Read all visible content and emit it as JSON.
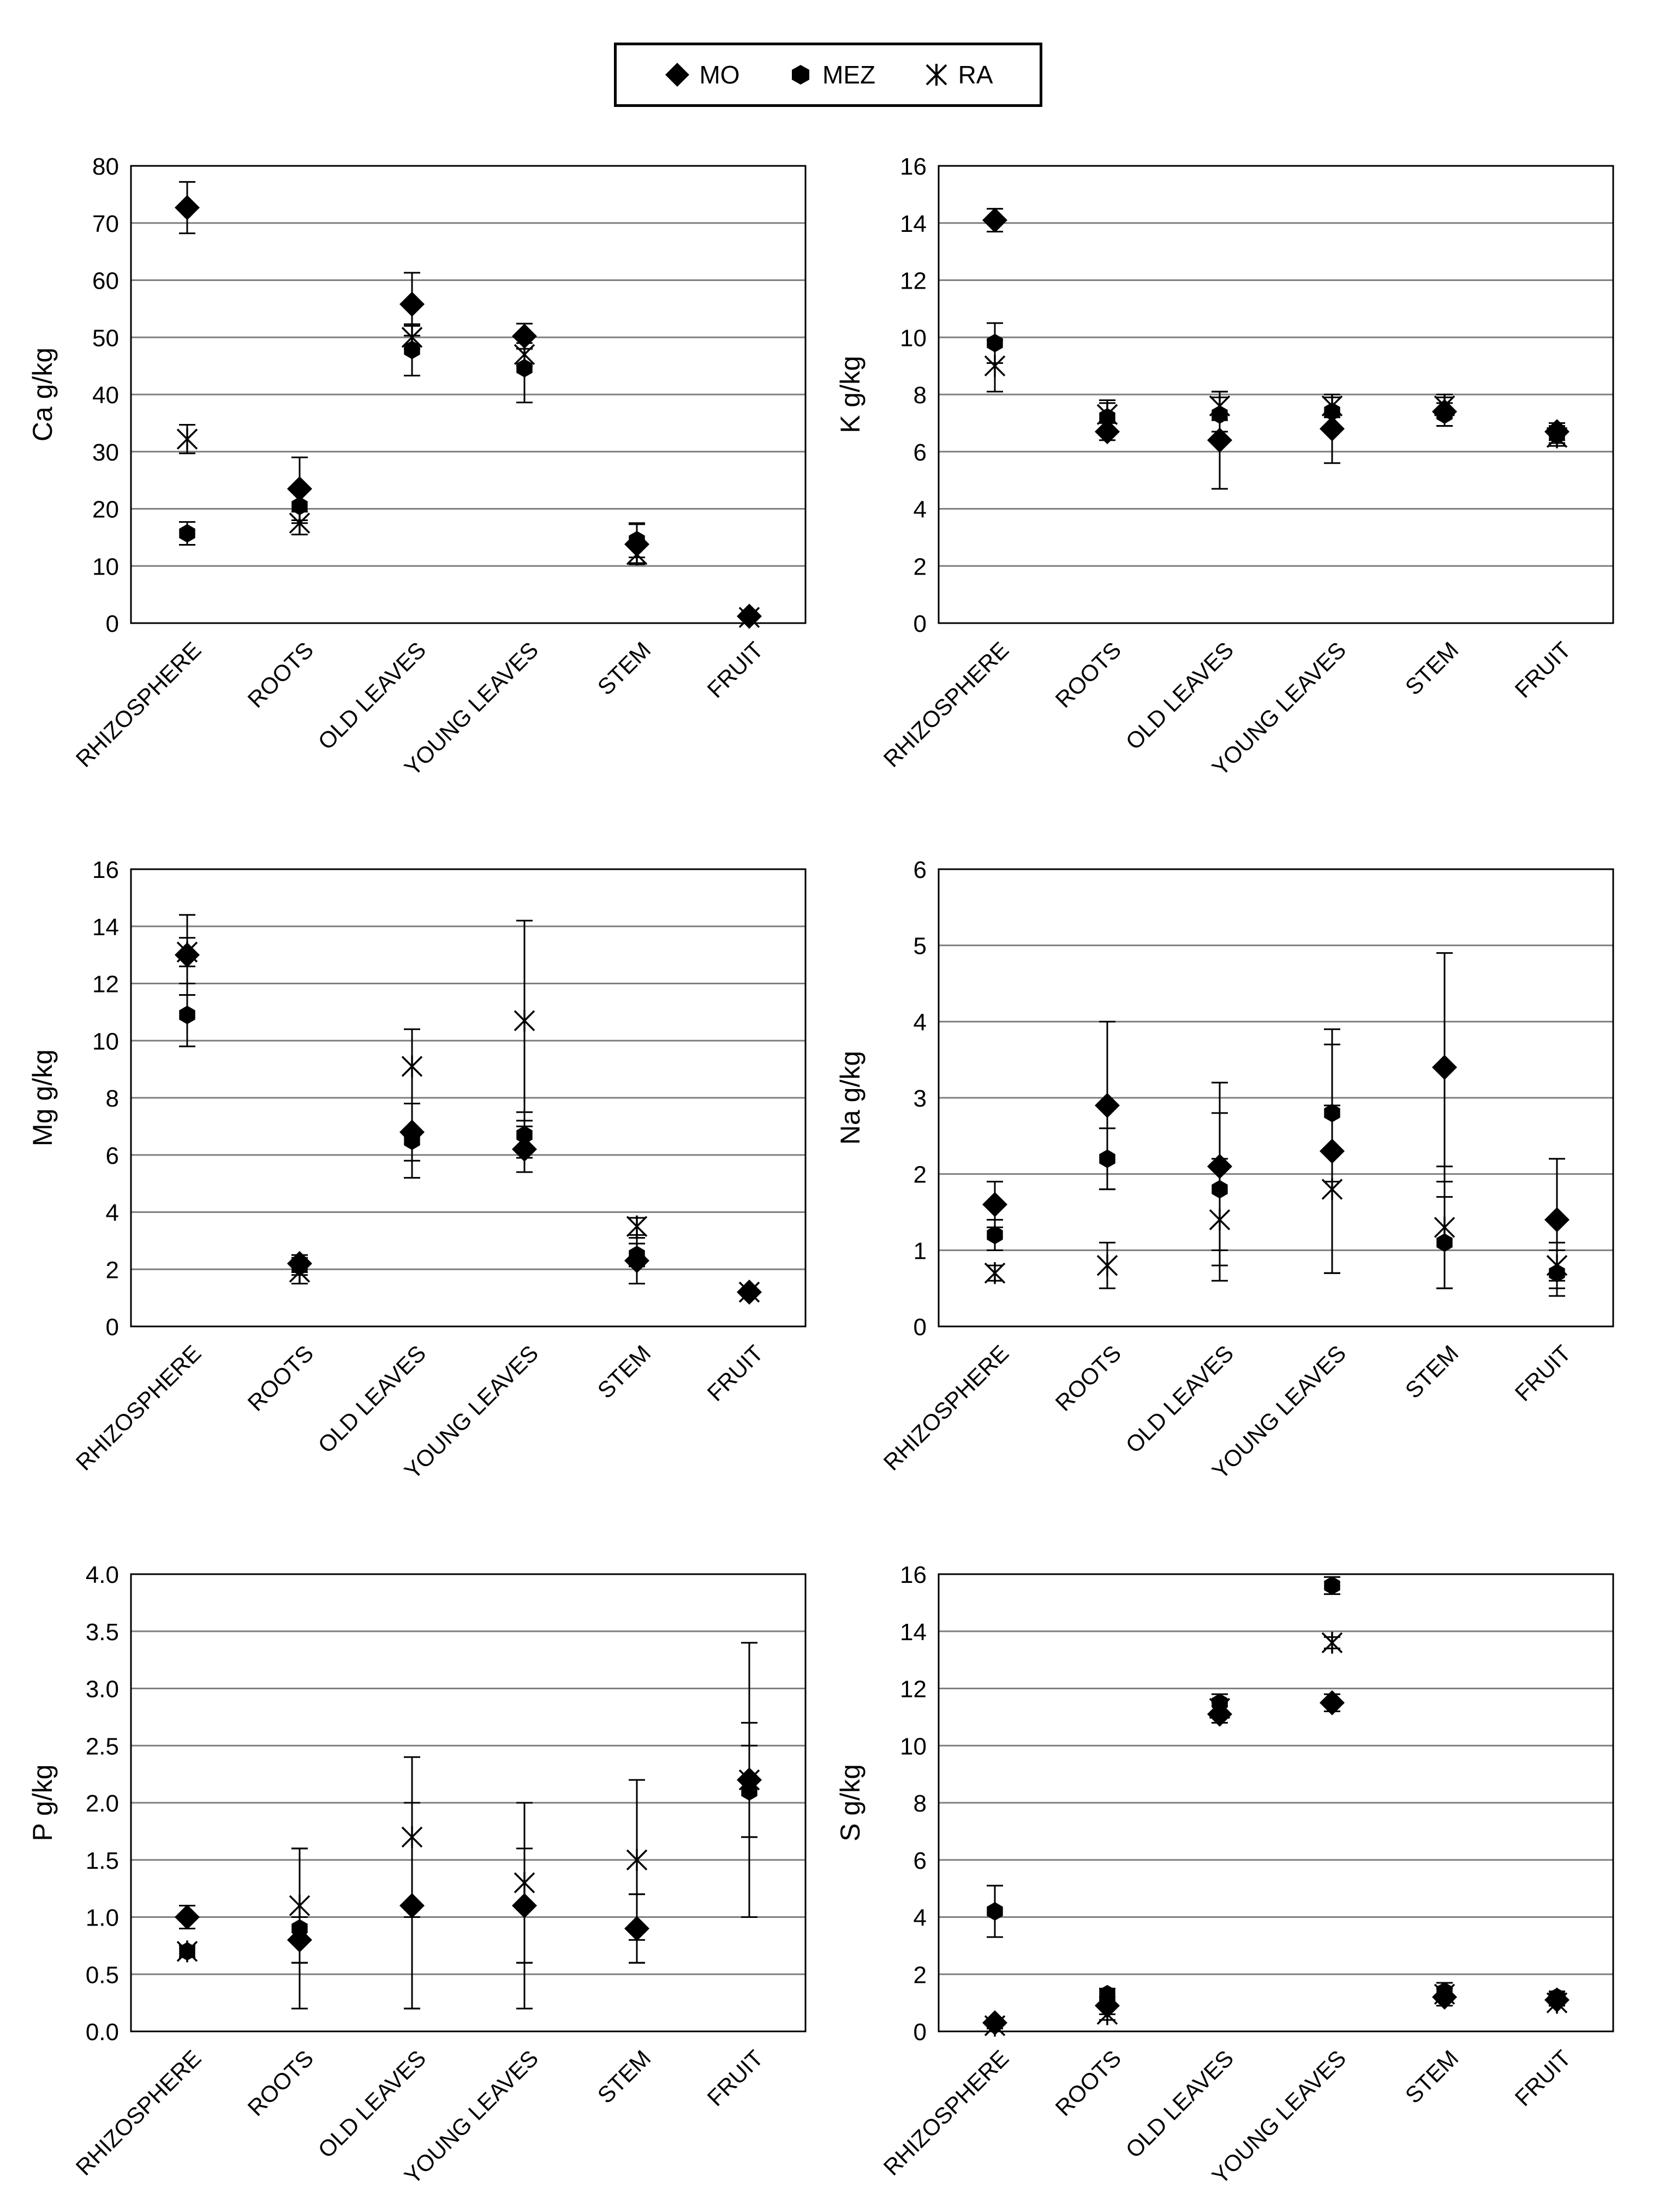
{
  "legend": {
    "items": [
      {
        "label": "MO",
        "marker": "diamond"
      },
      {
        "label": "MEZ",
        "marker": "hexagon"
      },
      {
        "label": "RA",
        "marker": "asterisk"
      }
    ]
  },
  "colors": {
    "marker": "#000000",
    "gridline": "#7f7f7f",
    "axis": "#000000"
  },
  "chart_data": [
    {
      "type": "scatter",
      "ylabel": "Ca g/kg",
      "ylim": [
        0,
        80
      ],
      "yticks": [
        0,
        10,
        20,
        30,
        40,
        50,
        60,
        70,
        80
      ],
      "tick_decimals": 0,
      "categories": [
        "RHIZOSPHERE",
        "ROOTS",
        "OLD LEAVES",
        "YOUNG LEAVES",
        "STEM",
        "FRUIT"
      ],
      "series": [
        {
          "name": "MO",
          "values": [
            72.7,
            23.5,
            55.8,
            50.2,
            13.8,
            1.2
          ],
          "errors": [
            4.5,
            5.5,
            5.5,
            2.2,
            3.5,
            0.5
          ]
        },
        {
          "name": "MEZ",
          "values": [
            15.7,
            20.5,
            47.8,
            44.6,
            14.5,
            1.2
          ],
          "errors": [
            2.0,
            3.0,
            4.5,
            6.0,
            3.0,
            0.3
          ]
        },
        {
          "name": "RA",
          "values": [
            32.2,
            17.5,
            50.0,
            47.0,
            12.0,
            1.0
          ],
          "errors": [
            2.5,
            2.0,
            2.0,
            2.0,
            1.5,
            0.3
          ]
        }
      ]
    },
    {
      "type": "scatter",
      "ylabel": "K g/kg",
      "ylim": [
        0,
        16
      ],
      "yticks": [
        0,
        2,
        4,
        6,
        8,
        10,
        12,
        14,
        16
      ],
      "tick_decimals": 0,
      "categories": [
        "RHIZOSPHERE",
        "ROOTS",
        "OLD LEAVES",
        "YOUNG LEAVES",
        "STEM",
        "FRUIT"
      ],
      "series": [
        {
          "name": "MO",
          "values": [
            14.1,
            6.7,
            6.4,
            6.8,
            7.4,
            6.7
          ],
          "errors": [
            0.4,
            0.3,
            1.7,
            1.2,
            0.5,
            0.3
          ]
        },
        {
          "name": "MEZ",
          "values": [
            9.8,
            7.2,
            7.3,
            7.4,
            7.3,
            6.6
          ],
          "errors": [
            0.7,
            0.5,
            0.6,
            0.5,
            0.4,
            0.3
          ]
        },
        {
          "name": "RA",
          "values": [
            9.0,
            7.3,
            7.6,
            7.6,
            7.6,
            6.5
          ],
          "errors": [
            0.9,
            0.5,
            0.5,
            0.4,
            0.4,
            0.3
          ]
        }
      ]
    },
    {
      "type": "scatter",
      "ylabel": "Mg g/kg",
      "ylim": [
        0,
        16
      ],
      "yticks": [
        0,
        2,
        4,
        6,
        8,
        10,
        12,
        14,
        16
      ],
      "tick_decimals": 0,
      "categories": [
        "RHIZOSPHERE",
        "ROOTS",
        "OLD LEAVES",
        "YOUNG LEAVES",
        "STEM",
        "FRUIT"
      ],
      "series": [
        {
          "name": "MO",
          "values": [
            13.0,
            2.2,
            6.8,
            6.2,
            2.3,
            1.2
          ],
          "errors": [
            1.4,
            0.3,
            1.0,
            0.8,
            0.8,
            0.1
          ]
        },
        {
          "name": "MEZ",
          "values": [
            10.9,
            2.1,
            6.5,
            6.7,
            2.5,
            1.2
          ],
          "errors": [
            1.1,
            0.3,
            1.3,
            0.8,
            0.4,
            0.1
          ]
        },
        {
          "name": "RA",
          "values": [
            13.1,
            1.9,
            9.1,
            10.7,
            3.5,
            1.2
          ],
          "errors": [
            0.5,
            0.4,
            1.3,
            3.5,
            0.3,
            0.1
          ]
        }
      ]
    },
    {
      "type": "scatter",
      "ylabel": "Na g/kg",
      "ylim": [
        0,
        6
      ],
      "yticks": [
        0,
        1,
        2,
        3,
        4,
        5,
        6
      ],
      "tick_decimals": 0,
      "categories": [
        "RHIZOSPHERE",
        "ROOTS",
        "OLD LEAVES",
        "YOUNG LEAVES",
        "STEM",
        "FRUIT"
      ],
      "series": [
        {
          "name": "MO",
          "values": [
            1.6,
            2.9,
            2.1,
            2.3,
            3.4,
            1.4
          ],
          "errors": [
            0.3,
            1.1,
            1.1,
            1.6,
            1.5,
            0.8
          ]
        },
        {
          "name": "MEZ",
          "values": [
            1.2,
            2.2,
            1.8,
            2.8,
            1.1,
            0.7
          ],
          "errors": [
            0.2,
            0.4,
            1.0,
            0.9,
            0.6,
            0.3
          ]
        },
        {
          "name": "RA",
          "values": [
            0.7,
            0.8,
            1.4,
            1.8,
            1.3,
            0.8
          ],
          "errors": [
            0.1,
            0.3,
            0.8,
            1.1,
            0.8,
            0.3
          ]
        }
      ]
    },
    {
      "type": "scatter",
      "ylabel": "P g/kg",
      "ylim": [
        0,
        4
      ],
      "yticks": [
        0,
        0.5,
        1,
        1.5,
        2,
        2.5,
        3,
        3.5,
        4
      ],
      "tick_decimals": 1,
      "categories": [
        "RHIZOSPHERE",
        "ROOTS",
        "OLD LEAVES",
        "YOUNG LEAVES",
        "STEM",
        "FRUIT"
      ],
      "series": [
        {
          "name": "MO",
          "values": [
            1.0,
            0.8,
            1.1,
            1.1,
            0.9,
            2.2
          ],
          "errors": [
            0.1,
            0.2,
            0.9,
            0.9,
            0.3,
            1.2
          ]
        },
        {
          "name": "MEZ",
          "values": [
            0.7,
            0.9,
            1.1,
            1.1,
            0.9,
            2.1
          ],
          "errors": [
            0.05,
            0.7,
            0.9,
            0.5,
            0.3,
            0.4
          ]
        },
        {
          "name": "RA",
          "values": [
            0.7,
            1.1,
            1.7,
            1.3,
            1.5,
            2.2
          ],
          "errors": [
            0.05,
            0.5,
            0.7,
            0.7,
            0.7,
            0.5
          ]
        }
      ]
    },
    {
      "type": "scatter",
      "ylabel": "S g/kg",
      "ylim": [
        0,
        16
      ],
      "yticks": [
        0,
        2,
        4,
        6,
        8,
        10,
        12,
        14,
        16
      ],
      "tick_decimals": 0,
      "categories": [
        "RHIZOSPHERE",
        "ROOTS",
        "OLD LEAVES",
        "YOUNG LEAVES",
        "STEM",
        "FRUIT"
      ],
      "series": [
        {
          "name": "MO",
          "values": [
            0.3,
            0.9,
            11.1,
            11.5,
            1.2,
            1.1
          ],
          "errors": [
            0.1,
            0.3,
            0.3,
            0.3,
            0.3,
            0.2
          ]
        },
        {
          "name": "MEZ",
          "values": [
            4.2,
            1.3,
            11.5,
            15.6,
            1.4,
            1.2
          ],
          "errors": [
            0.9,
            0.2,
            0.3,
            0.3,
            0.3,
            0.2
          ]
        },
        {
          "name": "RA",
          "values": [
            0.2,
            0.6,
            11.3,
            13.6,
            1.3,
            1.0
          ],
          "errors": [
            0.1,
            0.2,
            0.2,
            0.2,
            0.2,
            0.1
          ]
        }
      ]
    }
  ]
}
